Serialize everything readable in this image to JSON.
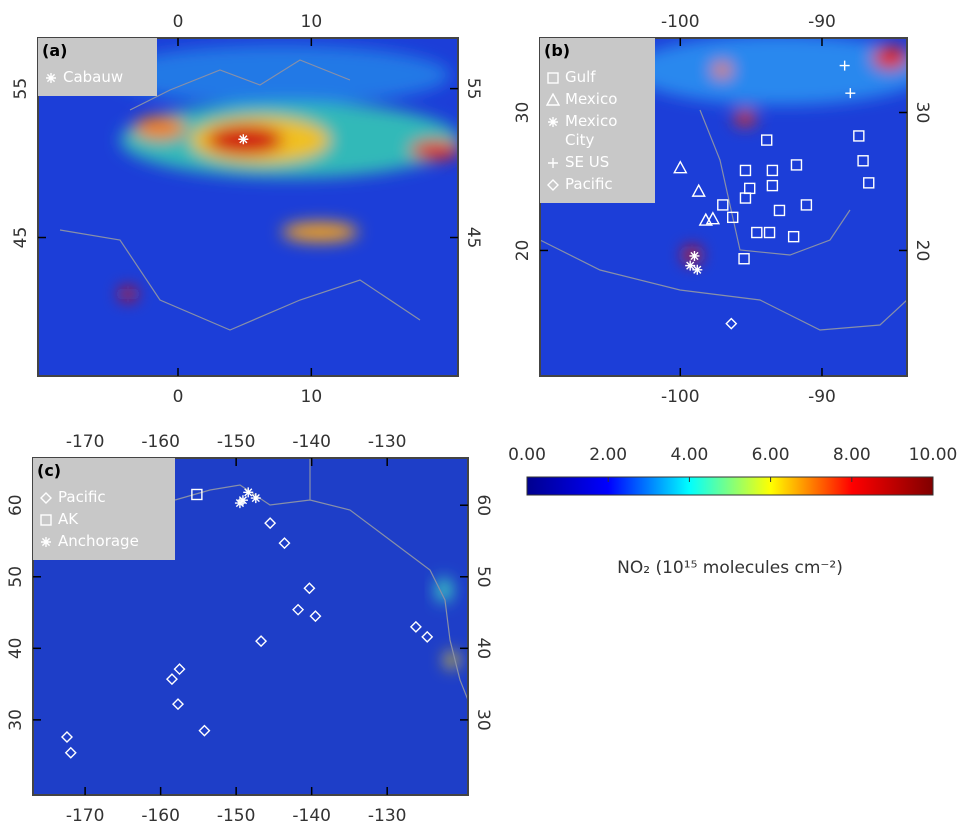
{
  "panels": [
    {
      "label": "(a)",
      "xlim": [
        -10.5,
        21
      ],
      "ylim": [
        35.7,
        58.4
      ],
      "xticks": [
        0,
        10
      ],
      "yticks": [
        45,
        55
      ],
      "series": [
        {
          "name": "Cabauw",
          "symbol": "asterisk",
          "points": [
            [
              4.9,
              51.6
            ]
          ]
        }
      ]
    },
    {
      "label": "(b)",
      "xlim": [
        -109.9,
        -84
      ],
      "ylim": [
        10.9,
        35.4
      ],
      "xticks": [
        -100,
        -90
      ],
      "yticks": [
        20,
        30
      ],
      "series": [
        {
          "name": "Gulf",
          "symbol": "square",
          "points": [
            [
              -93.9,
              28.0
            ],
            [
              -95.4,
              25.8
            ],
            [
              -93.5,
              25.8
            ],
            [
              -91.8,
              26.2
            ],
            [
              -93.5,
              24.7
            ],
            [
              -95.1,
              24.5
            ],
            [
              -95.4,
              23.8
            ],
            [
              -97.0,
              23.3
            ],
            [
              -96.3,
              22.4
            ],
            [
              -93.0,
              22.9
            ],
            [
              -91.1,
              23.3
            ],
            [
              -94.6,
              21.3
            ],
            [
              -93.7,
              21.3
            ],
            [
              -92.0,
              21.0
            ],
            [
              -95.5,
              19.4
            ],
            [
              -87.4,
              28.3
            ],
            [
              -87.1,
              26.5
            ],
            [
              -86.7,
              24.9
            ]
          ]
        },
        {
          "name": "Mexico",
          "symbol": "triangle",
          "points": [
            [
              -100.0,
              26.0
            ],
            [
              -98.7,
              24.3
            ],
            [
              -98.2,
              22.2
            ],
            [
              -97.7,
              22.3
            ]
          ]
        },
        {
          "name": "Mexico City",
          "symbol": "asterisk",
          "points": [
            [
              -99.0,
              19.6
            ],
            [
              -99.3,
              18.9
            ],
            [
              -98.8,
              18.6
            ]
          ]
        },
        {
          "name": "SE US",
          "symbol": "plus",
          "points": [
            [
              -88.4,
              33.4
            ],
            [
              -88.0,
              31.4
            ]
          ]
        },
        {
          "name": "Pacific",
          "symbol": "diamond",
          "points": [
            [
              -96.4,
              14.7
            ]
          ]
        }
      ]
    },
    {
      "label": "(c)",
      "xlim": [
        -176.9,
        -119.3
      ],
      "ylim": [
        19.5,
        66.6
      ],
      "xticks": [
        -170,
        -160,
        -150,
        -140,
        -130
      ],
      "yticks": [
        30,
        40,
        50,
        60
      ],
      "series": [
        {
          "name": "Pacific",
          "symbol": "diamond",
          "points": [
            [
              -145.5,
              57.5
            ],
            [
              -143.6,
              54.7
            ],
            [
              -140.3,
              48.4
            ],
            [
              -141.8,
              45.4
            ],
            [
              -139.5,
              44.5
            ],
            [
              -146.7,
              41.0
            ],
            [
              -126.2,
              43.0
            ],
            [
              -124.7,
              41.6
            ],
            [
              -157.5,
              37.1
            ],
            [
              -158.5,
              35.7
            ],
            [
              -157.7,
              32.2
            ],
            [
              -154.2,
              28.5
            ],
            [
              -172.4,
              27.6
            ],
            [
              -171.9,
              25.4
            ]
          ]
        },
        {
          "name": "AK",
          "symbol": "square",
          "points": [
            [
              -155.2,
              61.5
            ]
          ]
        },
        {
          "name": "Anchorage",
          "symbol": "asterisk",
          "points": [
            [
              -148.4,
              61.8
            ],
            [
              -149.1,
              60.7
            ],
            [
              -147.4,
              61.0
            ],
            [
              -149.5,
              60.3
            ]
          ]
        }
      ]
    }
  ],
  "colorbar": {
    "lim": [
      0,
      10
    ],
    "colors": [
      "#00008f",
      "#0000ff",
      "#00ffff",
      "#ffff00",
      "#ff0000",
      "#800000"
    ],
    "ticks": [
      {
        "value": 0,
        "label": "0.00"
      },
      {
        "value": 2,
        "label": "2.00"
      },
      {
        "value": 4,
        "label": "4.00"
      },
      {
        "value": 6,
        "label": "6.00"
      },
      {
        "value": 8,
        "label": "8.00"
      },
      {
        "value": 10,
        "label": "10.00"
      }
    ],
    "label": "NO₂ (10¹⁵ molecules cm⁻²)"
  }
}
